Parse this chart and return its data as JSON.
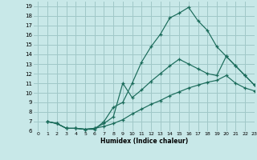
{
  "xlabel": "Humidex (Indice chaleur)",
  "bg_color": "#c8e8e8",
  "grid_color": "#a0c8c8",
  "line_color": "#1a6b5a",
  "xlim": [
    -0.5,
    23
  ],
  "ylim": [
    6,
    19.5
  ],
  "xticks": [
    0,
    1,
    2,
    3,
    4,
    5,
    6,
    7,
    8,
    9,
    10,
    11,
    12,
    13,
    14,
    15,
    16,
    17,
    18,
    19,
    20,
    21,
    22,
    23
  ],
  "yticks": [
    6,
    7,
    8,
    9,
    10,
    11,
    12,
    13,
    14,
    15,
    16,
    17,
    18,
    19
  ],
  "line1_x": [
    1,
    2,
    3,
    4,
    5,
    6,
    7,
    8,
    9,
    10,
    11,
    12,
    13,
    14,
    15,
    16,
    17,
    18,
    19,
    20,
    21,
    22,
    23
  ],
  "line1_y": [
    7.0,
    6.8,
    6.3,
    6.3,
    6.2,
    6.2,
    7.0,
    8.5,
    9.0,
    11.0,
    13.2,
    14.8,
    16.1,
    17.8,
    18.3,
    18.9,
    17.5,
    16.5,
    14.8,
    13.8,
    12.8,
    11.8,
    10.8
  ],
  "line2_x": [
    1,
    2,
    3,
    4,
    5,
    6,
    7,
    8,
    9,
    10,
    11,
    12,
    13,
    14,
    15,
    16,
    17,
    18,
    19,
    20,
    21,
    22,
    23
  ],
  "line2_y": [
    7.0,
    6.8,
    6.3,
    6.3,
    6.2,
    6.3,
    6.8,
    7.5,
    11.0,
    9.5,
    10.3,
    11.2,
    12.0,
    12.8,
    13.5,
    13.0,
    12.5,
    12.0,
    11.8,
    13.8,
    12.8,
    11.8,
    10.8
  ],
  "line3_x": [
    1,
    2,
    3,
    4,
    5,
    6,
    7,
    8,
    9,
    10,
    11,
    12,
    13,
    14,
    15,
    16,
    17,
    18,
    19,
    20,
    21,
    22,
    23
  ],
  "line3_y": [
    7.0,
    6.8,
    6.3,
    6.3,
    6.2,
    6.3,
    6.5,
    6.8,
    7.2,
    7.8,
    8.3,
    8.8,
    9.2,
    9.7,
    10.1,
    10.5,
    10.8,
    11.1,
    11.3,
    11.8,
    11.0,
    10.5,
    10.2
  ]
}
